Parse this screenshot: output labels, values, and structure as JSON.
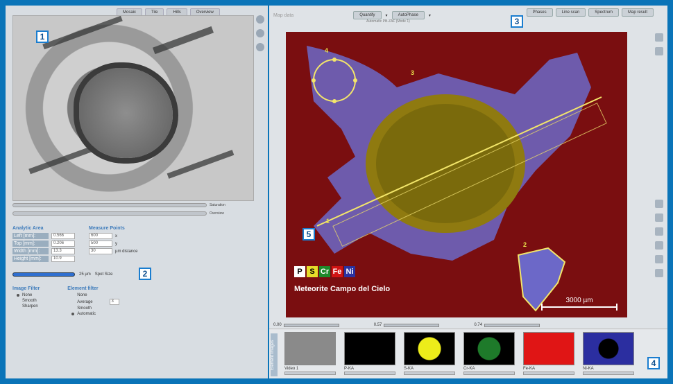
{
  "left_panel": {
    "tabs": [
      "Mosaic",
      "Tile",
      "Hills",
      "Overview"
    ],
    "slider_labels": [
      "Saturation",
      "Overview"
    ],
    "analytic_area": {
      "title": "Analytic Area",
      "rows": [
        {
          "label": "Left [mm]:",
          "value": "0.566"
        },
        {
          "label": "Top [mm]:",
          "value": "0.206"
        },
        {
          "label": "Width [mm]:",
          "value": "13.3"
        },
        {
          "label": "Height [mm]:",
          "value": "10.9"
        }
      ]
    },
    "measure_points": {
      "title": "Measure Points",
      "rows": [
        {
          "value": "600",
          "unit": "x"
        },
        {
          "value": "500",
          "unit": "y"
        },
        {
          "value": "30",
          "unit": "µm distance"
        }
      ]
    },
    "spot": {
      "value": "25 µm",
      "label": "Spot Size"
    },
    "image_filter": {
      "title": "Image Filter",
      "options": [
        "None",
        "Smooth",
        "Sharpen"
      ],
      "selected": "None"
    },
    "element_filter": {
      "title": "Element filter",
      "options": [
        "None",
        "Average",
        "Smooth",
        "Automatic"
      ],
      "selected": "Automatic",
      "average_value": "3"
    }
  },
  "right_panel": {
    "toolbar": {
      "label": "Map data",
      "buttons": [
        "Quantify",
        "AutoPhase"
      ],
      "subtext": "Automatic PB-ZAF (Mode 1)",
      "right_buttons": [
        "Phases",
        "Line scan",
        "Spectrum",
        "Map result"
      ]
    },
    "map": {
      "elements": [
        {
          "symbol": "P",
          "bg": "#ffffff",
          "fg": "#000000"
        },
        {
          "symbol": "S",
          "bg": "#e6dd2a",
          "fg": "#000000"
        },
        {
          "symbol": "Cr",
          "bg": "#1d8a2b",
          "fg": "#ffffff"
        },
        {
          "symbol": "Fe",
          "bg": "#d01313",
          "fg": "#ffffff"
        },
        {
          "symbol": "Ni",
          "bg": "#2a32a0",
          "fg": "#ffffff"
        }
      ],
      "caption": "Meteorite Campo del Cielo",
      "scale": "3000 µm",
      "markers": [
        "1",
        "2",
        "3",
        "4"
      ]
    },
    "ranges": [
      "0.00",
      "0.57",
      "0.74"
    ],
    "element_images": {
      "title": "Element Images",
      "thumbs": [
        {
          "label": "Video 1",
          "bg": "#8a8a8a"
        },
        {
          "label": "P-KA",
          "bg": "#000000"
        },
        {
          "label": "S-KA",
          "bg": "#000000"
        },
        {
          "label": "Cr-KA",
          "bg": "#000000"
        },
        {
          "label": "Fe-KA",
          "bg": "#e01515"
        },
        {
          "label": "Ni-KA",
          "bg": "#10103a"
        }
      ]
    }
  },
  "callouts": [
    "1",
    "2",
    "3",
    "4",
    "5"
  ]
}
